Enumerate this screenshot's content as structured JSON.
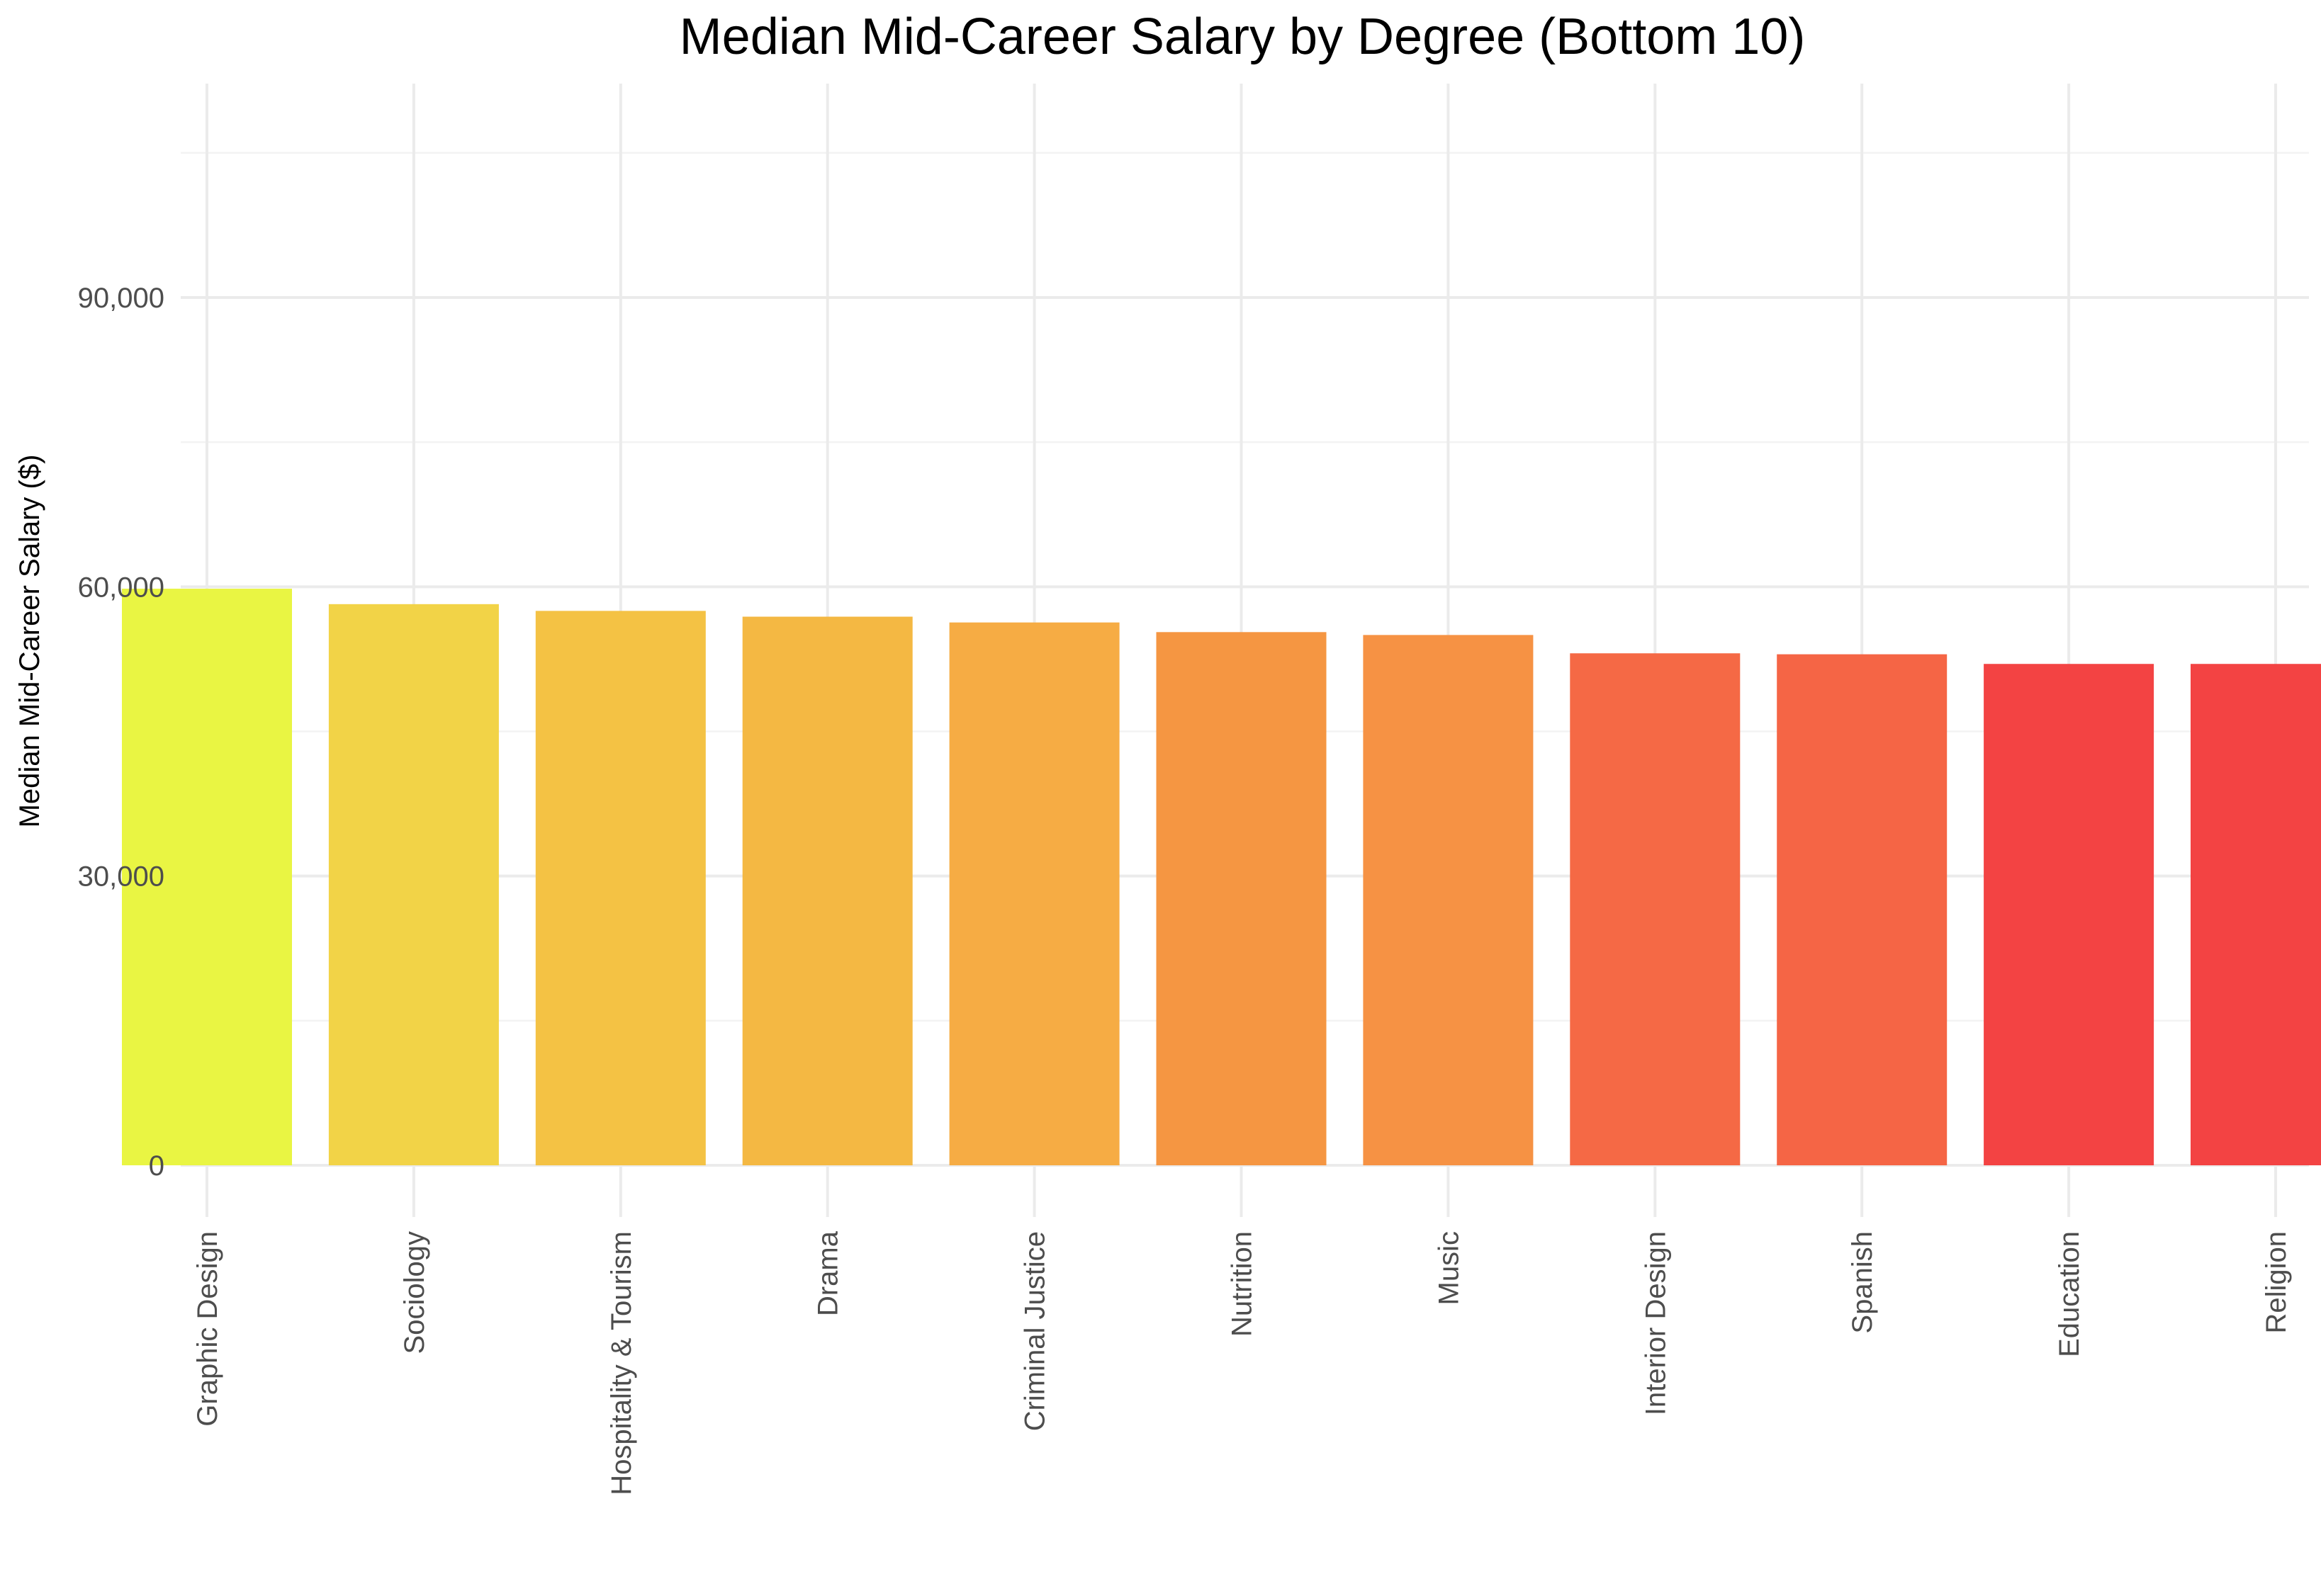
{
  "chart_data": {
    "type": "bar",
    "title": "Median Mid-Career Salary by Degree (Bottom 10)",
    "xlabel": "",
    "ylabel": "Median Mid-Career Salary ($)",
    "categories": [
      "Graphic Design",
      "Sociology",
      "Hospitality & Tourism",
      "Drama",
      "Criminal Justice",
      "Nutrition",
      "Music",
      "Interior Design",
      "Spanish",
      "Education",
      "Religion"
    ],
    "values": [
      59800,
      58200,
      57500,
      56900,
      56300,
      55300,
      55000,
      53100,
      53000,
      52000,
      52000
    ],
    "colors": [
      "#e9f543",
      "#f2d347",
      "#f4c244",
      "#f4b843",
      "#f6ac44",
      "#f59642",
      "#f69244",
      "#f56945",
      "#f56545",
      "#f34343",
      "#f34343"
    ],
    "ylim": [
      0,
      105000
    ],
    "yticks": [
      0,
      30000,
      60000,
      90000
    ],
    "yticklabels": [
      "0",
      "30,000",
      "60,000",
      "90,000"
    ],
    "grid": true,
    "legend": "none"
  }
}
